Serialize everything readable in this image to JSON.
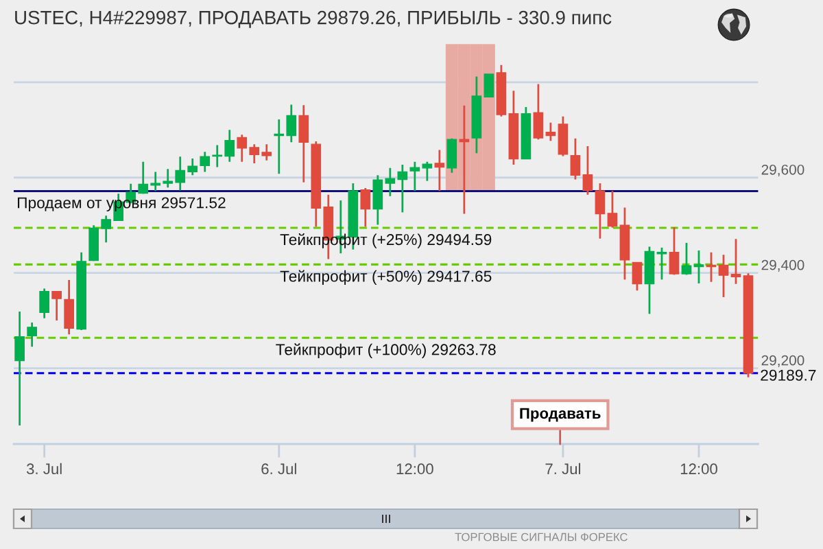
{
  "chart_data": {
    "type": "candlestick",
    "title": "USTEC, H4#229987, ПРОДАВАТЬ 29879.26, ПРИБЫЛЬ - 330.9 пипс",
    "categories": [
      null,
      null,
      "3. Jul",
      null,
      null,
      null,
      null,
      null,
      null,
      null,
      null,
      null,
      null,
      null,
      null,
      null,
      null,
      null,
      null,
      null,
      null,
      "6. Jul",
      null,
      null,
      null,
      null,
      null,
      null,
      null,
      null,
      null,
      null,
      "12:00",
      null,
      null,
      null,
      null,
      null,
      null,
      null,
      null,
      null,
      null,
      null,
      "7. Jul",
      null,
      null,
      null,
      null,
      null,
      null,
      null,
      null,
      null,
      null,
      "12:00",
      null,
      null,
      null,
      null
    ],
    "ohlc": [
      [
        29216,
        29319,
        29080,
        29266
      ],
      [
        29268,
        29296,
        29245,
        29286
      ],
      [
        29317,
        29367,
        29305,
        29361
      ],
      [
        29361,
        29362,
        29300,
        29346
      ],
      [
        29344,
        29385,
        29271,
        29284
      ],
      [
        29282,
        29443,
        29280,
        29424
      ],
      [
        29426,
        29500,
        29425,
        29494
      ],
      [
        29493,
        29520,
        29464,
        29512
      ],
      [
        29510,
        29566,
        29509,
        29549
      ],
      [
        29548,
        29587,
        29546,
        29569
      ],
      [
        29567,
        29633,
        29566,
        29586
      ],
      [
        29584,
        29612,
        29572,
        29588
      ],
      [
        29588,
        29618,
        29579,
        29592
      ],
      [
        29590,
        29644,
        29573,
        29615
      ],
      [
        29612,
        29640,
        29605,
        29624
      ],
      [
        29625,
        29654,
        29612,
        29644
      ],
      [
        29645,
        29668,
        29622,
        29647
      ],
      [
        29645,
        29700,
        29633,
        29678
      ],
      [
        29684,
        29690,
        29633,
        29662
      ],
      [
        29663,
        29670,
        29630,
        29648
      ],
      [
        29653,
        29670,
        29636,
        29646
      ],
      [
        29688,
        29722,
        29608,
        29691
      ],
      [
        29688,
        29753,
        29674,
        29730
      ],
      [
        29730,
        29752,
        29590,
        29674
      ],
      [
        29670,
        29676,
        29497,
        29536
      ],
      [
        29538,
        29564,
        29429,
        29469
      ],
      [
        29471,
        29552,
        29441,
        29477
      ],
      [
        29475,
        29588,
        29449,
        29572
      ],
      [
        29574,
        29578,
        29497,
        29534
      ],
      [
        29534,
        29605,
        29501,
        29595
      ],
      [
        29588,
        29620,
        29561,
        29598
      ],
      [
        29596,
        29627,
        29527,
        29612
      ],
      [
        29614,
        29633,
        29572,
        29621
      ],
      [
        29620,
        29633,
        29593,
        29628
      ],
      [
        29630,
        29658,
        29572,
        29622
      ],
      [
        29620,
        29682,
        29610,
        29680
      ],
      [
        29680,
        29751,
        29524,
        29675
      ],
      [
        29683,
        29812,
        29651,
        29771
      ],
      [
        29769,
        29817,
        29769,
        29817
      ],
      [
        29820,
        29836,
        29728,
        29732
      ],
      [
        29734,
        29782,
        29627,
        29639
      ],
      [
        29639,
        29748,
        29639,
        29734
      ],
      [
        29736,
        29796,
        29680,
        29683
      ],
      [
        29695,
        29715,
        29677,
        29688
      ],
      [
        29712,
        29728,
        29645,
        29649
      ],
      [
        29646,
        29682,
        29596,
        29605
      ],
      [
        29606,
        29666,
        29564,
        29573
      ],
      [
        29572,
        29588,
        29472,
        29524
      ],
      [
        29525,
        29572,
        29495,
        29498
      ],
      [
        29500,
        29537,
        29386,
        29427
      ],
      [
        29422,
        29422,
        29363,
        29377
      ],
      [
        29377,
        29455,
        29314,
        29445
      ],
      [
        29440,
        29453,
        29386,
        29443
      ],
      [
        29443,
        29496,
        29396,
        29398
      ],
      [
        29398,
        29463,
        29396,
        29415
      ],
      [
        29413,
        29447,
        29378,
        29417
      ],
      [
        29416,
        29443,
        29381,
        29413
      ],
      [
        29416,
        29438,
        29349,
        29395
      ],
      [
        29397,
        29471,
        29377,
        29392
      ],
      [
        29394,
        29399,
        29181,
        29189.7
      ]
    ],
    "colors": [
      "#00b04f",
      "#00b04f",
      "#00b04f",
      "#e04b3d",
      "#e04b3d",
      "#00b04f",
      "#00b04f",
      "#00b04f",
      "#00b04f",
      "#00b04f",
      "#00b04f",
      "#00b04f",
      "#00b04f",
      "#00b04f",
      "#00b04f",
      "#00b04f",
      "#00b04f",
      "#00b04f",
      "#e04b3d",
      "#e04b3d",
      "#e04b3d",
      "#00b04f",
      "#00b04f",
      "#e04b3d",
      "#e04b3d",
      "#e04b3d",
      "#00b04f",
      "#00b04f",
      "#e04b3d",
      "#00b04f",
      "#00b04f",
      "#00b04f",
      "#00b04f",
      "#00b04f",
      "#e04b3d",
      "#00b04f",
      "#e04b3d",
      "#00b04f",
      "#00b04f",
      "#e04b3d",
      "#e04b3d",
      "#00b04f",
      "#e04b3d",
      "#e04b3d",
      "#e04b3d",
      "#e04b3d",
      "#e04b3d",
      "#e04b3d",
      "#e04b3d",
      "#e04b3d",
      "#e04b3d",
      "#00b04f",
      "#00b04f",
      "#e04b3d",
      "#00b04f",
      "#00b04f",
      "#e04b3d",
      "#e04b3d",
      "#e04b3d",
      "#e04b3d"
    ],
    "series": [
      {
        "type": "bar",
        "color": "#e8aba3",
        "values": [
          null,
          null,
          null,
          null,
          null,
          null,
          null,
          null,
          null,
          null,
          null,
          null,
          null,
          null,
          null,
          null,
          null,
          null,
          null,
          null,
          null,
          null,
          null,
          null,
          null,
          null,
          null,
          null,
          null,
          null,
          null,
          null,
          null,
          null,
          null,
          308,
          308,
          308,
          308,
          null,
          null,
          null,
          null,
          null,
          null,
          null,
          null,
          null,
          null,
          null,
          null,
          null,
          null,
          null,
          null,
          null,
          null,
          null,
          null,
          null
        ],
        "base": [
          null,
          null,
          null,
          null,
          null,
          null,
          null,
          null,
          null,
          null,
          null,
          null,
          null,
          null,
          null,
          null,
          null,
          null,
          null,
          null,
          null,
          null,
          null,
          null,
          null,
          null,
          null,
          null,
          null,
          null,
          null,
          null,
          null,
          null,
          null,
          29572,
          29572,
          29572,
          29572,
          null,
          null,
          null,
          null,
          null,
          null,
          null,
          null,
          null,
          null,
          null,
          null,
          null,
          null,
          null,
          null,
          null,
          null,
          null,
          null,
          null
        ]
      }
    ],
    "ylim": [
      29041,
      29885
    ],
    "yticks": [
      {
        "value": 29200,
        "label": "29,200"
      },
      {
        "value": 29400,
        "label": "29,400"
      },
      {
        "value": 29600,
        "label": "29,600"
      },
      {
        "value": 29800,
        "label": null
      }
    ],
    "grid": "y",
    "ref_lines": [
      {
        "axis": "y",
        "value": 29571.52,
        "label": "Продаем от уровня 29571.52",
        "color": "#10107a",
        "line_style": "solid"
      },
      {
        "axis": "y",
        "value": 29494.59,
        "label": "Тейкпрофит (+25%) 29494.59",
        "color": "#66cc00",
        "line_style": "dashed"
      },
      {
        "axis": "y",
        "value": 29417.65,
        "label": "Тейкпрофит (+50%) 29417.65",
        "color": "#66cc00",
        "line_style": "dashed"
      },
      {
        "axis": "y",
        "value": 29263.78,
        "label": "Тейкпрофит (+100%) 29263.78",
        "color": "#66cc00",
        "line_style": "dashed"
      },
      {
        "axis": "y",
        "value": 29189.7,
        "label": "29189.7",
        "color": "#0000ee",
        "line_style": "dashed"
      }
    ],
    "annotations": [
      "Продавать",
      "ТОРГОВЫЕ СИГНАЛЫ ФОРЕКС"
    ]
  }
}
